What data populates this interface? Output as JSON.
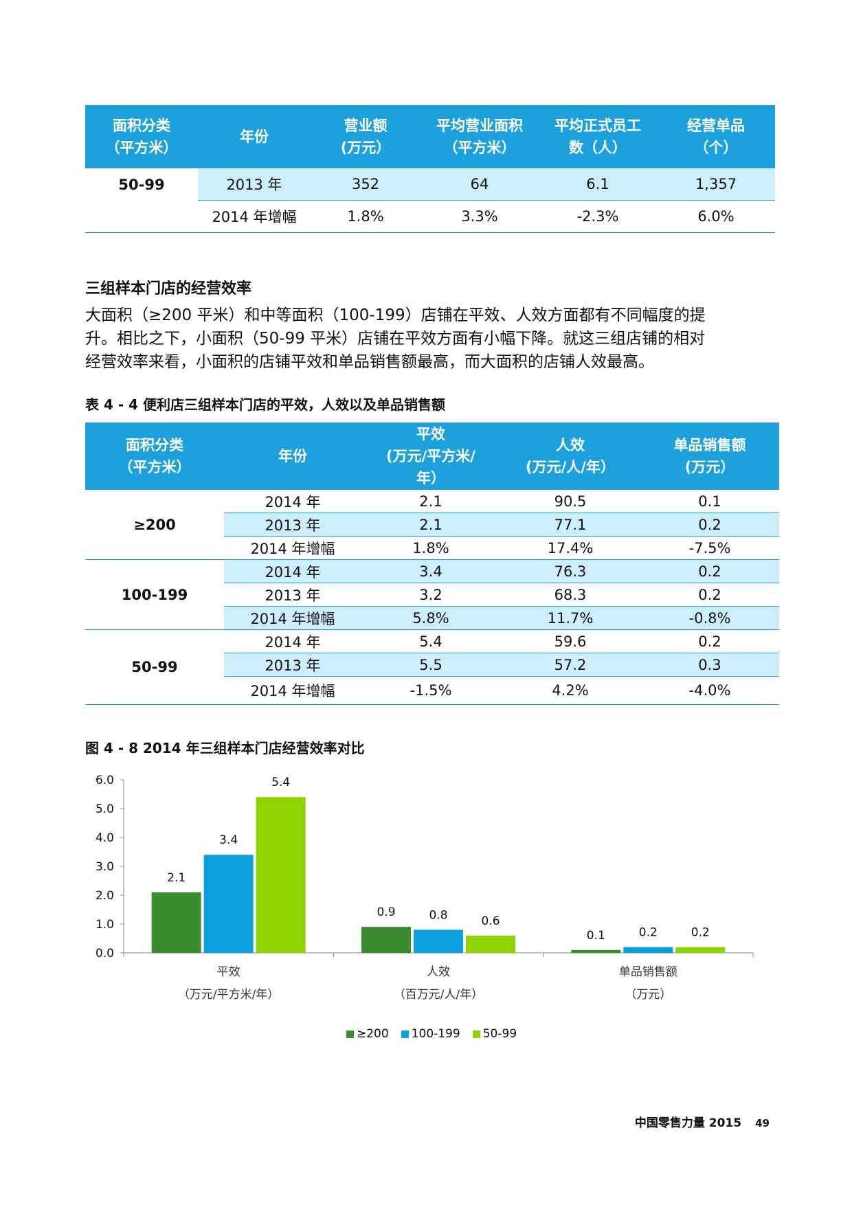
{
  "table1": {
    "headers": [
      [
        "面积分类",
        "（平方米）"
      ],
      [
        "年份"
      ],
      [
        "营业额",
        "(万元）"
      ],
      [
        "平均营业面积",
        "（平方米）"
      ],
      [
        "平均正式员工",
        "数（人）"
      ],
      [
        "经营单品",
        "（个）"
      ]
    ],
    "category": "50-99",
    "rows": [
      [
        "2013 年",
        "352",
        "64",
        "6.1",
        "1,357"
      ],
      [
        "2014 年增幅",
        "1.8%",
        "3.3%",
        "-2.3%",
        "6.0%"
      ]
    ]
  },
  "section_title": "三组样本门店的经营效率",
  "paragraph_lines": [
    "大面积（≥200 平米）和中等面积（100-199）店铺在平效、人效方面都有不同幅度的提",
    "升。相比之下，小面积（50-99 平米）店铺在平效方面有小幅下降。就这三组店铺的相对",
    "经营效率来看，小面积的店铺平效和单品销售额最高，而大面积的店铺人效最高。"
  ],
  "table2_caption": "表 4 - 4 便利店三组样本门店的平效，人效以及单品销售额",
  "table2": {
    "headers": [
      [
        "面积分类",
        "（平方米）"
      ],
      [
        "年份"
      ],
      [
        "平效",
        "(万元/平方米/",
        "年）"
      ],
      [
        "人效",
        "(万元/人/年）"
      ],
      [
        "单品销售额",
        "(万元）"
      ]
    ],
    "groups": [
      {
        "category": "≥200",
        "rows": [
          [
            "2014 年",
            "2.1",
            "90.5",
            "0.1"
          ],
          [
            "2013 年",
            "2.1",
            "77.1",
            "0.2"
          ],
          [
            "2014 年增幅",
            "1.8%",
            "17.4%",
            "-7.5%"
          ]
        ]
      },
      {
        "category": "100-199",
        "rows": [
          [
            "2014 年",
            "3.4",
            "76.3",
            "0.2"
          ],
          [
            "2013 年",
            "3.2",
            "68.3",
            "0.2"
          ],
          [
            "2014 年增幅",
            "5.8%",
            "11.7%",
            "-0.8%"
          ]
        ]
      },
      {
        "category": "50-99",
        "rows": [
          [
            "2014 年",
            "5.4",
            "59.6",
            "0.2"
          ],
          [
            "2013 年",
            "5.5",
            "57.2",
            "0.3"
          ],
          [
            "2014 年增幅",
            "-1.5%",
            "4.2%",
            "-4.0%"
          ]
        ]
      }
    ]
  },
  "chart_caption": "图 4 - 8  2014 年三组样本门店经营效率对比",
  "chart_data": {
    "type": "bar",
    "title": "",
    "categories": [
      [
        "平效",
        "（万元/平方米/年）"
      ],
      [
        "人效",
        "（百万元/人/年）"
      ],
      [
        "单品销售额",
        "（万元）"
      ]
    ],
    "series": [
      {
        "name": "≥200",
        "values": [
          2.1,
          0.9,
          0.1
        ],
        "color": "#3a8a2e"
      },
      {
        "name": "100-199",
        "values": [
          3.4,
          0.8,
          0.2
        ],
        "color": "#0ca1de"
      },
      {
        "name": "50-99",
        "values": [
          5.4,
          0.6,
          0.2
        ],
        "color": "#8fd400"
      }
    ],
    "ylim": [
      0,
      6
    ],
    "yticks": [
      "0.0",
      "1.0",
      "2.0",
      "3.0",
      "4.0",
      "5.0",
      "6.0"
    ],
    "legend_position": "bottom",
    "grid": false
  },
  "footer": {
    "title": "中国零售力量 2015",
    "page": "49"
  }
}
